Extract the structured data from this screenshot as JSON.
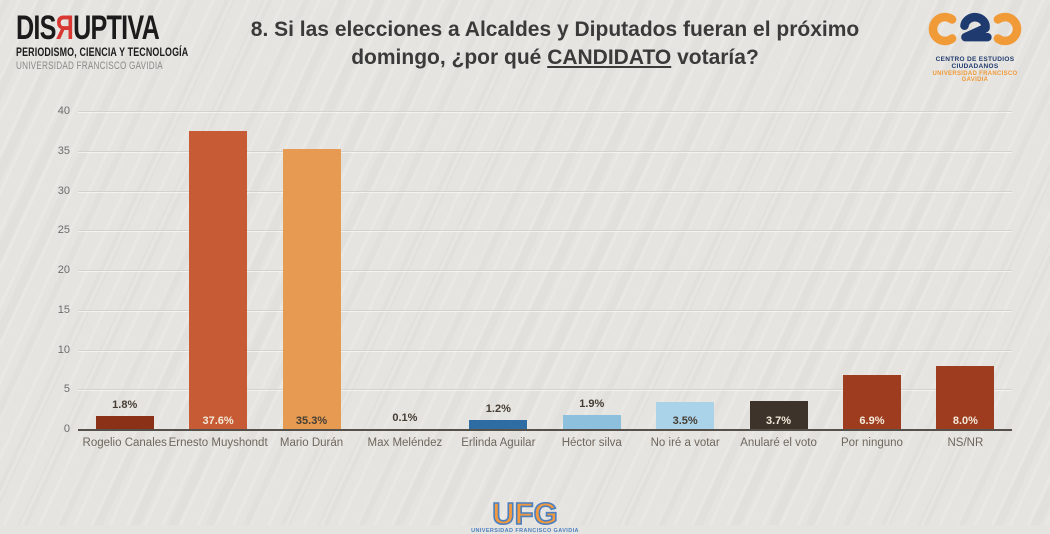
{
  "header": {
    "disruptiva": {
      "part1": "DIS",
      "part2": "Я",
      "part3": "UPTIVA",
      "line2": "PERIODISMO, CIENCIA Y TECNOLOGÍA",
      "line3": "UNIVERSIDAD FRANCISCO GAVIDIA",
      "accent_color": "#d93832"
    },
    "title_line1": "8. Si las elecciones a Alcaldes y Diputados fueran el próximo",
    "title_line2_pre": "domingo, ¿por qué ",
    "title_line2_underlined": "CANDIDATO",
    "title_line2_post": " votaría?",
    "cec": {
      "line1": "CENTRO DE ESTUDIOS CIUDADANOS",
      "line2": "UNIVERSIDAD FRANCISCO GAVIDIA",
      "orange": "#f09a38",
      "navy": "#1f3a6e"
    }
  },
  "chart_data": {
    "type": "bar",
    "title": "8. Si las elecciones a Alcaldes y Diputados fueran el próximo domingo, ¿por qué CANDIDATO votaría?",
    "categories": [
      "Rogelio Canales",
      "Ernesto Muyshondt",
      "Mario Durán",
      "Max Meléndez",
      "Erlinda Aguilar",
      "Héctor silva",
      "No iré a votar",
      "Anularé el voto",
      "Por ninguno",
      "NS/NR"
    ],
    "values": [
      1.8,
      37.6,
      35.3,
      0.1,
      1.2,
      1.9,
      3.5,
      3.7,
      6.9,
      8.0
    ],
    "value_labels": [
      "1.8%",
      "37.6%",
      "35.3%",
      "0.1%",
      "1.2%",
      "1.9%",
      "3.5%",
      "3.7%",
      "6.9%",
      "8.0%"
    ],
    "bar_colors": [
      "#8a3118",
      "#c75b35",
      "#e69a52",
      "#8a3118",
      "#2e6da4",
      "#8cc0dd",
      "#aad2e8",
      "#3d332a",
      "#9e3c20",
      "#9e3c20"
    ],
    "label_position": [
      "above",
      "inside",
      "inside",
      "above",
      "above",
      "above",
      "inside",
      "inside",
      "inside",
      "inside"
    ],
    "label_tone": [
      "dark",
      "light",
      "dark",
      "dark",
      "dark",
      "dark",
      "dark",
      "light",
      "light",
      "light"
    ],
    "xlabel": "",
    "ylabel": "",
    "ylim": [
      0,
      40
    ],
    "yticks": [
      0,
      5,
      10,
      15,
      20,
      25,
      30,
      35,
      40
    ],
    "grid": "horizontal",
    "legend": "none"
  },
  "footer": {
    "ufg_text": "UFG",
    "ufg_subtext": "UNIVERSIDAD FRANCISCO GAVIDIA"
  },
  "colors": {
    "background": "#e6e4e0",
    "gridline": "#d3d2cf",
    "axis": "#55504a",
    "tick_label": "#6c6c6c",
    "category_label": "#6f675e",
    "value_label_dark": "#453d33",
    "value_label_light": "#f3ead9"
  }
}
